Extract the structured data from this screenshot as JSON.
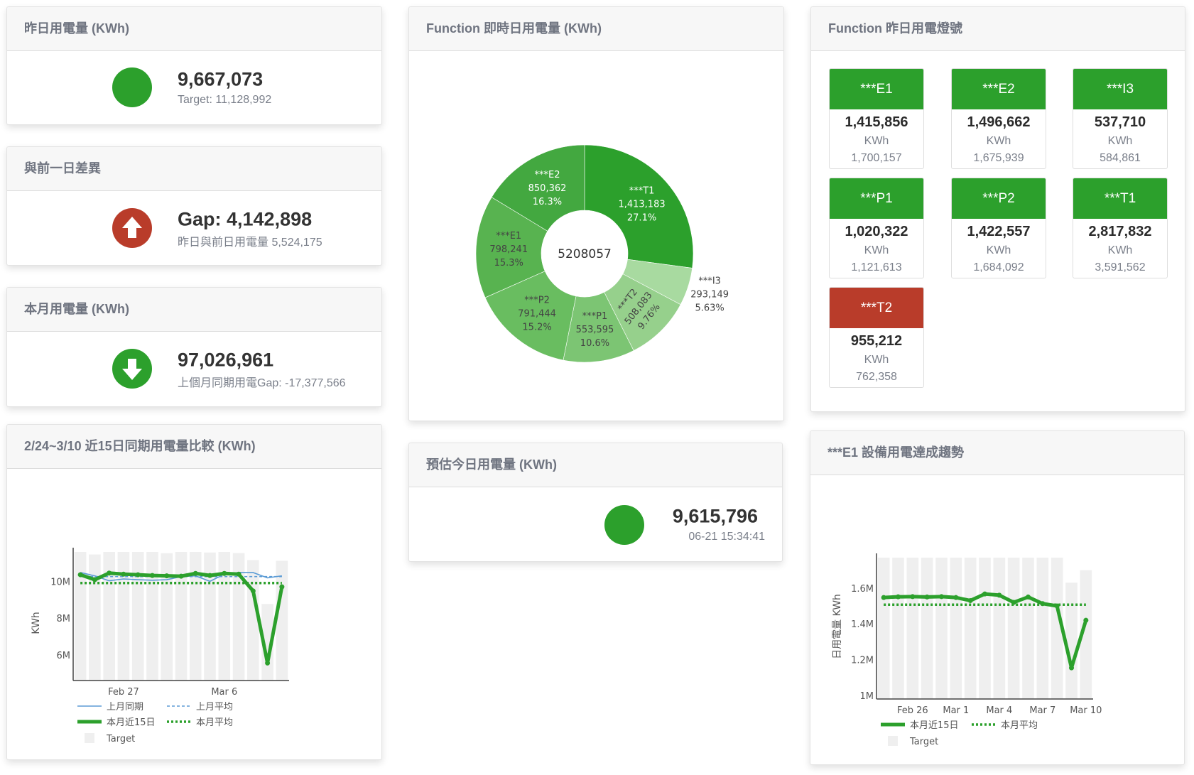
{
  "colors": {
    "green": "#2ca02c",
    "red": "#b93c2a",
    "header_bg": "#f7f7f7",
    "target_bar": "#efefef",
    "last_month": "#5b9bd5"
  },
  "yesterday": {
    "title": "昨日用電量 (KWh)",
    "status_icon": "green-circle",
    "value": "9,667,073",
    "target": "Target: 11,128,992"
  },
  "gap": {
    "title": "與前一日差異",
    "status_icon": "arrow-up-circle",
    "value": "Gap: 4,142,898",
    "sub": "昨日與前日用電量 5,524,175"
  },
  "month": {
    "title": "本月用電量 (KWh)",
    "status_icon": "arrow-down-circle",
    "value": "97,026,961",
    "sub": "上個月同期用電Gap: -17,377,566"
  },
  "donut": {
    "title": "Function 即時日用電量 (KWh)",
    "center_label": "5208057",
    "slices": [
      {
        "name": "***T1",
        "value": "1,413,183",
        "pct": "27.1%",
        "share": 27.1,
        "color": "#2ca02c",
        "text": "#ffffff"
      },
      {
        "name": "***I3",
        "value": "293,149",
        "pct": "5.63%",
        "share": 5.63,
        "color": "#a8daa0",
        "text": "#444444"
      },
      {
        "name": "***T2",
        "value": "508,083",
        "pct": "9.76%",
        "share": 9.76,
        "color": "#96d08c",
        "text": "#444444"
      },
      {
        "name": "***P1",
        "value": "553,595",
        "pct": "10.6%",
        "share": 10.6,
        "color": "#7cc573",
        "text": "#444444"
      },
      {
        "name": "***P2",
        "value": "791,444",
        "pct": "15.2%",
        "share": 15.2,
        "color": "#69bd60",
        "text": "#444444"
      },
      {
        "name": "***E1",
        "value": "798,241",
        "pct": "15.3%",
        "share": 15.3,
        "color": "#58b350",
        "text": "#444444"
      },
      {
        "name": "***E2",
        "value": "850,362",
        "pct": "16.3%",
        "share": 16.3,
        "color": "#43a840",
        "text": "#ffffff"
      }
    ]
  },
  "lights": {
    "title": "Function 昨日用電燈號",
    "tiles": [
      {
        "name": "***E1",
        "value": "1,415,856",
        "unit": "KWh",
        "ref": "1,700,157",
        "status": "green"
      },
      {
        "name": "***E2",
        "value": "1,496,662",
        "unit": "KWh",
        "ref": "1,675,939",
        "status": "green"
      },
      {
        "name": "***I3",
        "value": "537,710",
        "unit": "KWh",
        "ref": "584,861",
        "status": "green"
      },
      {
        "name": "***P1",
        "value": "1,020,322",
        "unit": "KWh",
        "ref": "1,121,613",
        "status": "green"
      },
      {
        "name": "***P2",
        "value": "1,422,557",
        "unit": "KWh",
        "ref": "1,684,092",
        "status": "green"
      },
      {
        "name": "***T1",
        "value": "2,817,832",
        "unit": "KWh",
        "ref": "3,591,562",
        "status": "green"
      },
      {
        "name": "***T2",
        "value": "955,212",
        "unit": "KWh",
        "ref": "762,358",
        "status": "red"
      }
    ]
  },
  "forecast": {
    "title": "預估今日用電量 (KWh)",
    "status_icon": "green-circle",
    "value": "9,615,796",
    "timestamp": "06-21 15:34:41"
  },
  "compare": {
    "title": "2/24~3/10 近15日同期用電量比較 (KWh)"
  },
  "trend": {
    "title": "***E1 設備用電達成趨勢"
  },
  "chart_data": [
    {
      "type": "bar+line",
      "ylabel": "KWh",
      "ylim": [
        4.6,
        11.6
      ],
      "y_unit": "M",
      "yticks": [
        {
          "v": 6,
          "label": "6M"
        },
        {
          "v": 8,
          "label": "8M"
        },
        {
          "v": 10,
          "label": "10M"
        }
      ],
      "x": [
        "Feb 24",
        "Feb 25",
        "Feb 26",
        "Feb 27",
        "Feb 28",
        "Mar 1",
        "Mar 2",
        "Mar 3",
        "Mar 4",
        "Mar 5",
        "Mar 6",
        "Mar 7",
        "Mar 8",
        "Mar 9",
        "Mar 10"
      ],
      "xticks": [
        {
          "i": 3,
          "label": "Feb 27"
        },
        {
          "i": 10,
          "label": "Mar 6"
        }
      ],
      "grid": false,
      "legend_position": "bottom",
      "series": [
        {
          "name": "Target",
          "kind": "bar",
          "color": "#efefef",
          "values": [
            11.6,
            11.46,
            11.6,
            11.6,
            11.6,
            11.6,
            11.53,
            11.6,
            11.6,
            11.57,
            11.6,
            11.54,
            11.16,
            8.77,
            11.12
          ]
        },
        {
          "name": "上月同期",
          "kind": "line",
          "color": "#5b9bd5",
          "values": [
            10.48,
            10.3,
            10.03,
            10.13,
            10.09,
            10.06,
            10.09,
            10.26,
            10.3,
            10.0,
            10.39,
            10.48,
            10.48,
            10.19,
            10.3
          ]
        },
        {
          "name": "上月平均",
          "kind": "dash",
          "color": "#5b9bd5",
          "values": [
            10.26,
            10.26,
            10.26,
            10.26,
            10.26,
            10.26,
            10.26,
            10.26,
            10.26,
            10.26,
            10.26,
            10.26,
            10.26,
            10.26,
            10.26
          ]
        },
        {
          "name": "本月近15日",
          "kind": "thick",
          "color": "#2ca02c",
          "values": [
            10.36,
            10.09,
            10.45,
            10.39,
            10.36,
            10.32,
            10.3,
            10.28,
            10.43,
            10.32,
            10.43,
            10.39,
            9.48,
            5.55,
            9.7
          ]
        },
        {
          "name": "本月平均",
          "kind": "dot",
          "color": "#2ca02c",
          "values": [
            9.91,
            9.91,
            9.91,
            9.91,
            9.91,
            9.91,
            9.91,
            9.91,
            9.91,
            9.91,
            9.91,
            9.91,
            9.91,
            9.91,
            9.91
          ]
        }
      ]
    },
    {
      "type": "bar+line",
      "ylabel": "日用電量 KWh",
      "ylim": [
        0.98,
        1.77
      ],
      "y_unit": "M",
      "yticks": [
        {
          "v": 1,
          "label": "1M"
        },
        {
          "v": 1.2,
          "label": "1.2M"
        },
        {
          "v": 1.4,
          "label": "1.4M"
        },
        {
          "v": 1.6,
          "label": "1.6M"
        }
      ],
      "x": [
        "Feb 24",
        "Feb 25",
        "Feb 26",
        "Feb 27",
        "Feb 28",
        "Mar 1",
        "Mar 2",
        "Mar 3",
        "Mar 4",
        "Mar 5",
        "Mar 6",
        "Mar 7",
        "Mar 8",
        "Mar 9",
        "Mar 10"
      ],
      "xticks": [
        {
          "i": 2,
          "label": "Feb 26"
        },
        {
          "i": 5,
          "label": "Mar 1"
        },
        {
          "i": 8,
          "label": "Mar 4"
        },
        {
          "i": 11,
          "label": "Mar 7"
        },
        {
          "i": 14,
          "label": "Mar 10"
        }
      ],
      "grid": false,
      "legend_position": "bottom",
      "series": [
        {
          "name": "Target",
          "kind": "bar",
          "color": "#efefef",
          "values": [
            1.77,
            1.77,
            1.77,
            1.77,
            1.77,
            1.77,
            1.77,
            1.77,
            1.77,
            1.77,
            1.77,
            1.77,
            1.77,
            1.63,
            1.7
          ]
        },
        {
          "name": "本月近15日",
          "kind": "thick",
          "color": "#2ca02c",
          "values": [
            1.547,
            1.551,
            1.552,
            1.55,
            1.552,
            1.547,
            1.53,
            1.567,
            1.56,
            1.52,
            1.55,
            1.513,
            1.5,
            1.154,
            1.42
          ]
        },
        {
          "name": "本月平均",
          "kind": "dot",
          "color": "#2ca02c",
          "values": [
            1.507,
            1.507,
            1.507,
            1.507,
            1.507,
            1.507,
            1.507,
            1.507,
            1.507,
            1.507,
            1.507,
            1.507,
            1.507,
            1.507,
            1.507
          ]
        }
      ]
    }
  ]
}
